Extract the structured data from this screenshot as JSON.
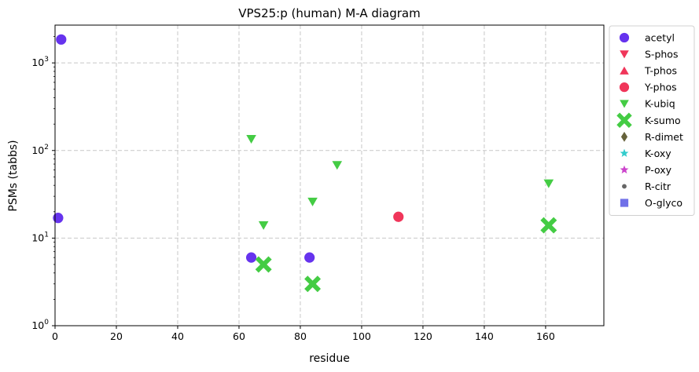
{
  "chart_data": {
    "type": "scatter",
    "title": "VPS25:p (human) M-A diagram",
    "xlabel": "residue",
    "ylabel": "PSMs (tabbs)",
    "xlim": [
      0,
      179
    ],
    "ylim": [
      1,
      2700
    ],
    "yscale": "log",
    "xticks": [
      "0",
      "20",
      "40",
      "60",
      "80",
      "100",
      "120",
      "140",
      "160"
    ],
    "yticks": [
      {
        "base": "10",
        "exp": "0"
      },
      {
        "base": "10",
        "exp": "1"
      },
      {
        "base": "10",
        "exp": "2"
      },
      {
        "base": "10",
        "exp": "3"
      }
    ],
    "grid": true,
    "legend_position": "outside-right",
    "series": [
      {
        "name": "acetyl",
        "marker": "circle",
        "color": "#6633ee",
        "points": [
          [
            2,
            1850
          ],
          [
            1,
            17
          ],
          [
            64,
            6
          ],
          [
            83,
            6
          ]
        ]
      },
      {
        "name": "S-phos",
        "marker": "triangle-down",
        "color": "#f0365a",
        "points": []
      },
      {
        "name": "T-phos",
        "marker": "triangle-up",
        "color": "#f0365a",
        "points": []
      },
      {
        "name": "Y-phos",
        "marker": "circle",
        "color": "#f0365a",
        "points": [
          [
            112,
            17.5
          ]
        ]
      },
      {
        "name": "K-ubiq",
        "marker": "triangle-down",
        "color": "#44cc44",
        "points": [
          [
            64,
            135
          ],
          [
            92,
            68
          ],
          [
            84,
            26
          ],
          [
            68,
            14
          ],
          [
            161,
            42
          ]
        ]
      },
      {
        "name": "K-sumo",
        "marker": "x",
        "color": "#44cc44",
        "points": [
          [
            68,
            5
          ],
          [
            84,
            3
          ],
          [
            161,
            14
          ]
        ]
      },
      {
        "name": "R-dimet",
        "marker": "diamond",
        "color": "#66623b",
        "points": []
      },
      {
        "name": "K-oxy",
        "marker": "star",
        "color": "#33cccc",
        "points": []
      },
      {
        "name": "P-oxy",
        "marker": "star",
        "color": "#cc44cc",
        "points": []
      },
      {
        "name": "R-citr",
        "marker": "dot",
        "color": "#666666",
        "points": []
      },
      {
        "name": "O-glyco",
        "marker": "square",
        "color": "#7070e8",
        "points": []
      }
    ]
  }
}
